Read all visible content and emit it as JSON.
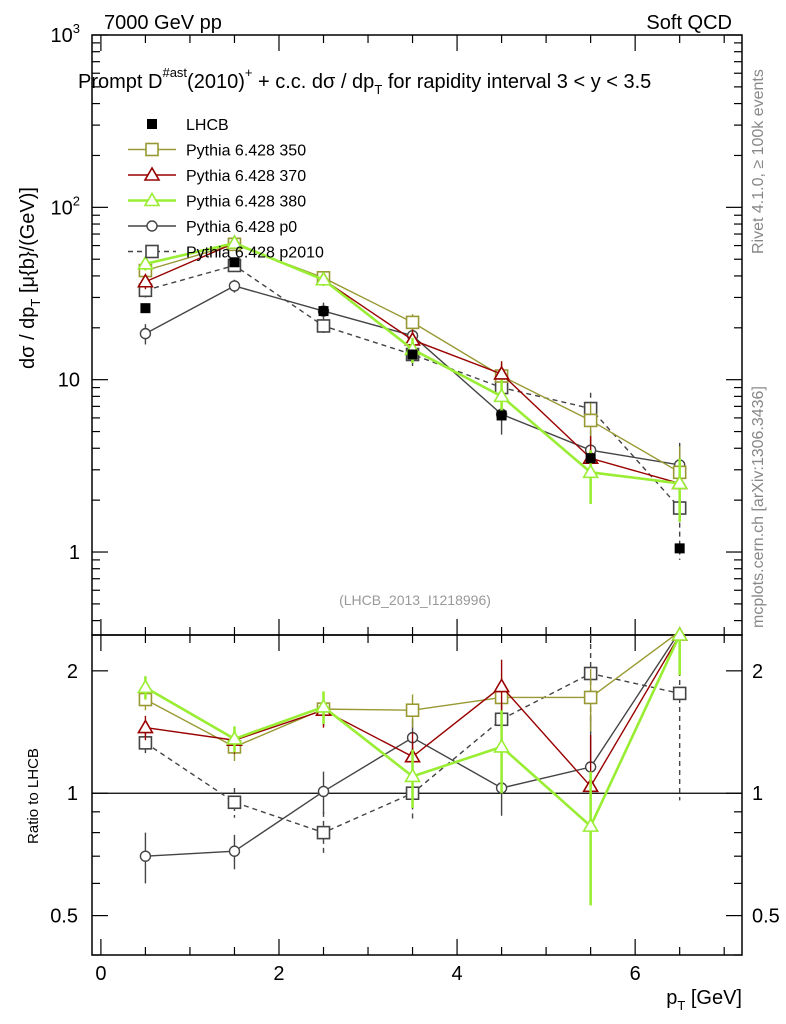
{
  "header": {
    "left": "7000 GeV pp",
    "right": "Soft QCD"
  },
  "title": {
    "main": "Prompt D",
    "sup1": "#ast",
    "mid": "(2010)",
    "sup2": "+",
    "rest": " + c.c.  dσ / dp",
    "sub": "T",
    "tail": " for rapidity interval 3 < y < 3.5"
  },
  "side_labels": {
    "rivet": "Rivet 4.1.0, ≥ 100k events",
    "mcplots": "mcplots.cern.ch [arXiv:1306.3436]"
  },
  "watermark": "(LHCB_2013_I1218996)",
  "ylabel_main": {
    "pre": "dσ / dp",
    "sub": "T",
    "post": " [μ{b}/(GeV)]"
  },
  "ylabel_ratio": "Ratio to LHCB",
  "xlabel": {
    "pre": "p",
    "sub": "T",
    "post": " [GeV]"
  },
  "main_ticks": [
    {
      "v": 1,
      "base": "1",
      "exp": ""
    },
    {
      "v": 10,
      "base": "10",
      "exp": ""
    },
    {
      "v": 100,
      "base": "10",
      "exp": "2"
    },
    {
      "v": 1000,
      "base": "10",
      "exp": "3"
    }
  ],
  "ratio_ticks": [
    {
      "v": 0.5,
      "label": "0.5"
    },
    {
      "v": 1,
      "label": "1"
    },
    {
      "v": 2,
      "label": "2"
    }
  ],
  "x_ticks": [
    {
      "v": 0,
      "label": "0"
    },
    {
      "v": 2,
      "label": "2"
    },
    {
      "v": 4,
      "label": "4"
    },
    {
      "v": 6,
      "label": "6"
    }
  ],
  "chart_data": {
    "type": "scatter",
    "x": [
      0.5,
      1.5,
      2.5,
      3.5,
      4.5,
      5.5,
      6.5
    ],
    "xlim": [
      -0.1,
      7.2
    ],
    "ylim": [
      0.33,
      1000
    ],
    "ratio_ylim": [
      0.4,
      2.45
    ],
    "log_y": true,
    "series": [
      {
        "name": "LHCB",
        "color": "#000000",
        "marker": "filled-square",
        "dashed": false,
        "values": [
          26,
          48,
          25,
          14,
          6.2,
          3.5,
          1.05
        ],
        "ratio": [
          1,
          1,
          1,
          1,
          1,
          1,
          1
        ]
      },
      {
        "name": "Pythia 6.428 350",
        "color": "#999933",
        "marker": "open-square",
        "dashed": false,
        "values": [
          43,
          61,
          39,
          21.5,
          10.5,
          5.8,
          2.9
        ],
        "err": [
          4,
          4,
          3,
          2.5,
          2,
          1.5,
          1.2
        ],
        "ratio": [
          1.7,
          1.3,
          1.61,
          1.6,
          1.72,
          1.72,
          2.5
        ],
        "ratio_err": [
          0.1,
          0.1,
          0.15,
          0.15,
          0.2,
          0.3,
          0.5
        ]
      },
      {
        "name": "Pythia 6.428 370",
        "color": "#990000",
        "marker": "open-triangle",
        "dashed": false,
        "values": [
          37,
          62,
          38,
          17,
          10.8,
          3.5,
          2.5
        ],
        "err": [
          3.5,
          4,
          3,
          2.5,
          2,
          1.2,
          1
        ],
        "ratio": [
          1.45,
          1.35,
          1.6,
          1.23,
          1.83,
          1.04,
          2.45
        ],
        "ratio_err": [
          0.1,
          0.1,
          0.15,
          0.18,
          0.3,
          0.35,
          0.5
        ]
      },
      {
        "name": "Pythia 6.428 380",
        "color": "#99ee33",
        "marker": "open-triangle",
        "dashed": false,
        "values": [
          47,
          62,
          38,
          15,
          8,
          2.9,
          2.5
        ],
        "err": [
          4,
          4,
          3,
          2.5,
          2,
          1,
          1
        ],
        "ratio": [
          1.82,
          1.36,
          1.63,
          1.1,
          1.3,
          0.83,
          2.45
        ],
        "ratio_err": [
          0.12,
          0.1,
          0.15,
          0.18,
          0.3,
          0.3,
          0.5
        ]
      },
      {
        "name": "Pythia 6.428 p0",
        "color": "#444444",
        "marker": "open-circle",
        "dashed": false,
        "values": [
          18.5,
          35,
          25,
          18,
          6.3,
          3.9,
          3.2
        ],
        "err": [
          2.5,
          3,
          3,
          2.5,
          1.5,
          1.2,
          1.1
        ],
        "ratio": [
          0.7,
          0.72,
          1.01,
          1.37,
          1.03,
          1.16,
          2.6
        ],
        "ratio_err": [
          0.1,
          0.07,
          0.12,
          0.15,
          0.15,
          0.4,
          0.6
        ]
      },
      {
        "name": "Pythia 6.428 p2010",
        "color": "#444444",
        "marker": "open-square",
        "dashed": true,
        "values": [
          33,
          46,
          20.5,
          14,
          9,
          6.8,
          1.8
        ],
        "err": [
          3,
          3.5,
          2,
          2,
          1.8,
          1.6,
          0.9
        ],
        "ratio": [
          1.33,
          0.95,
          0.8,
          1,
          1.52,
          1.97,
          1.76
        ],
        "ratio_err": [
          0.1,
          0.08,
          0.1,
          0.15,
          0.3,
          0.5,
          0.8
        ]
      }
    ]
  }
}
